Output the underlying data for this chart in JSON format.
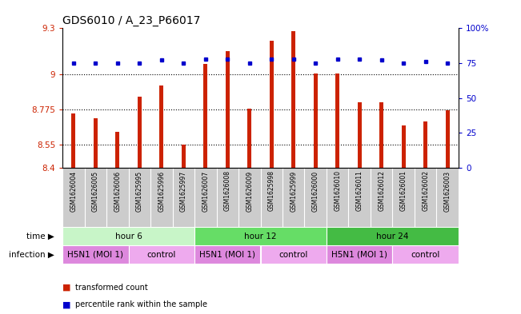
{
  "title": "GDS6010 / A_23_P66017",
  "samples": [
    "GSM1626004",
    "GSM1626005",
    "GSM1626006",
    "GSM1625995",
    "GSM1625996",
    "GSM1625997",
    "GSM1626007",
    "GSM1626008",
    "GSM1626009",
    "GSM1625998",
    "GSM1625999",
    "GSM1626000",
    "GSM1626010",
    "GSM1626011",
    "GSM1626012",
    "GSM1626001",
    "GSM1626002",
    "GSM1626003"
  ],
  "red_values": [
    8.75,
    8.72,
    8.63,
    8.86,
    8.93,
    8.55,
    9.07,
    9.15,
    8.78,
    9.22,
    9.28,
    9.01,
    9.01,
    8.82,
    8.82,
    8.67,
    8.7,
    8.77
  ],
  "blue_values": [
    75,
    75,
    75,
    75,
    77,
    75,
    78,
    78,
    75,
    78,
    78,
    75,
    78,
    78,
    77,
    75,
    76,
    75
  ],
  "y_min": 8.4,
  "y_max": 9.3,
  "y_ticks": [
    8.4,
    8.55,
    8.775,
    9.0,
    9.3
  ],
  "y_tick_labels": [
    "8.4",
    "8.55",
    "8.775",
    "9",
    "9.3"
  ],
  "right_y_ticks": [
    0,
    25,
    50,
    75,
    100
  ],
  "right_y_tick_labels": [
    "0",
    "25",
    "50",
    "75",
    "100%"
  ],
  "dotted_lines": [
    9.0,
    8.775,
    8.55
  ],
  "time_groups": [
    {
      "label": "hour 6",
      "start": 0,
      "end": 6,
      "color": "#c8f5c8"
    },
    {
      "label": "hour 12",
      "start": 6,
      "end": 12,
      "color": "#66dd66"
    },
    {
      "label": "hour 24",
      "start": 12,
      "end": 18,
      "color": "#44bb44"
    }
  ],
  "infection_groups": [
    {
      "label": "H5N1 (MOI 1)",
      "start": 0,
      "end": 3,
      "color": "#dd88dd"
    },
    {
      "label": "control",
      "start": 3,
      "end": 6,
      "color": "#eeaaee"
    },
    {
      "label": "H5N1 (MOI 1)",
      "start": 6,
      "end": 9,
      "color": "#dd88dd"
    },
    {
      "label": "control",
      "start": 9,
      "end": 12,
      "color": "#eeaaee"
    },
    {
      "label": "H5N1 (MOI 1)",
      "start": 12,
      "end": 15,
      "color": "#dd88dd"
    },
    {
      "label": "control",
      "start": 15,
      "end": 18,
      "color": "#eeaaee"
    }
  ],
  "bar_color": "#cc2200",
  "dot_color": "#0000cc",
  "bg_color": "#ffffff",
  "sample_bg": "#cccccc",
  "title_fontsize": 10,
  "tick_fontsize": 7.5,
  "sample_fontsize": 5.5,
  "row_fontsize": 7.5
}
